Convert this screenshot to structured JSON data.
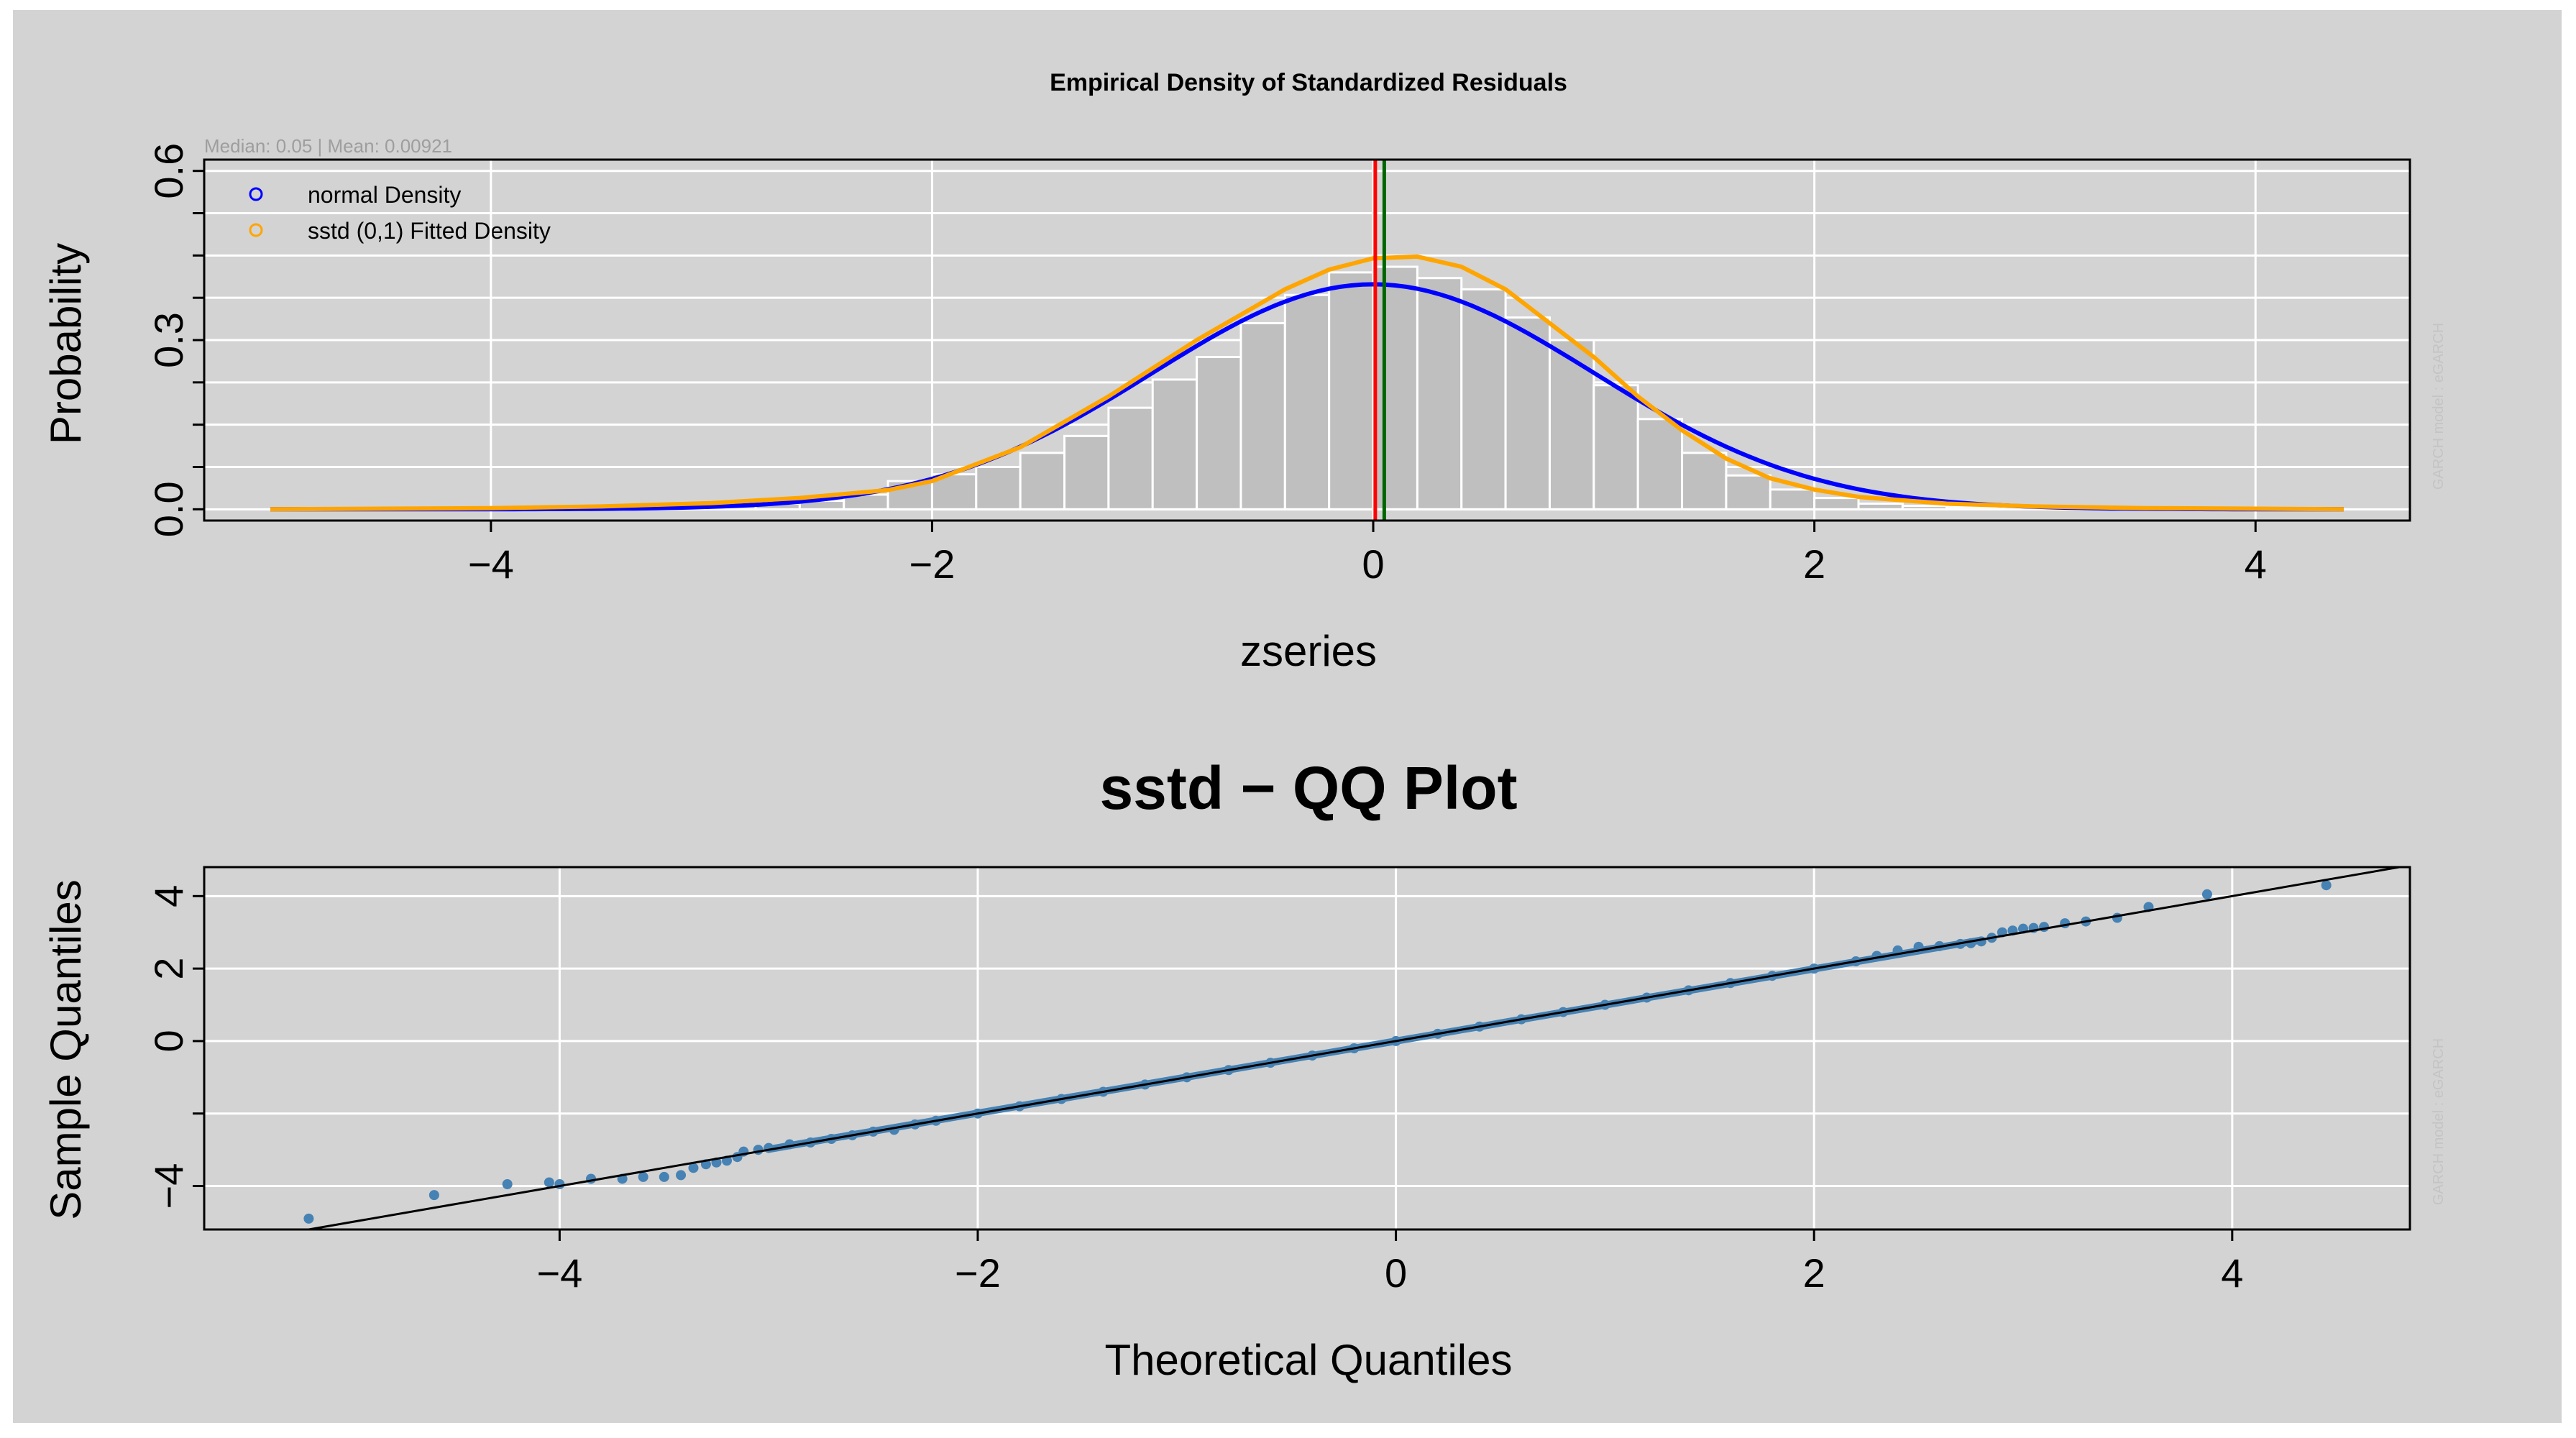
{
  "chart_data": [
    {
      "type": "histogram",
      "title": "Empirical Density of Standardized Residuals",
      "subtitle": "Median:  0.05 | Mean:  0.00921",
      "xlabel": "zseries",
      "ylabel": "Probability",
      "xlim": [
        -5.3,
        4.7
      ],
      "ylim": [
        -0.02,
        0.62
      ],
      "x_ticks": [
        -4,
        -2,
        0,
        2,
        4
      ],
      "x_tick_labels": [
        "−4",
        "−2",
        "0",
        "2",
        "4"
      ],
      "y_ticks": [
        0.0,
        0.3,
        0.6
      ],
      "y_tick_labels": [
        "0.0",
        "0.3",
        "0.6"
      ],
      "grid": true,
      "legend": {
        "position": "top-left",
        "entries": [
          {
            "label": "normal Density",
            "color": "#0000ff"
          },
          {
            "label": "sstd (0,1) Fitted Density",
            "color": "#ffa500"
          }
        ]
      },
      "bins": {
        "edges": [
          -5.0,
          -4.8,
          -4.6,
          -4.4,
          -4.2,
          -4.0,
          -3.8,
          -3.6,
          -3.4,
          -3.2,
          -3.0,
          -2.8,
          -2.6,
          -2.4,
          -2.2,
          -2.0,
          -1.8,
          -1.6,
          -1.4,
          -1.2,
          -1.0,
          -0.8,
          -0.6,
          -0.4,
          -0.2,
          0.0,
          0.2,
          0.4,
          0.6,
          0.8,
          1.0,
          1.2,
          1.4,
          1.6,
          1.8,
          2.0,
          2.2,
          2.4,
          2.6,
          2.8,
          3.0,
          3.2,
          3.4,
          3.6,
          3.8,
          4.0,
          4.2,
          4.4
        ],
        "density": [
          0.0,
          0.0,
          0.0,
          0.0,
          0.0,
          0.002,
          0.0,
          0.006,
          0.004,
          0.006,
          0.007,
          0.01,
          0.015,
          0.026,
          0.05,
          0.062,
          0.075,
          0.1,
          0.13,
          0.18,
          0.23,
          0.27,
          0.33,
          0.38,
          0.42,
          0.43,
          0.41,
          0.39,
          0.34,
          0.3,
          0.22,
          0.16,
          0.1,
          0.06,
          0.035,
          0.02,
          0.01,
          0.006,
          0.004,
          0.003,
          0.002,
          0.0,
          0.0,
          0.0,
          0.0,
          0.0,
          0.0
        ],
        "fill": "#bfbfbf",
        "stroke": "#ffffff"
      },
      "normal_density": {
        "mean": 0.0,
        "sd": 1.0,
        "color": "#0000ff"
      },
      "fitted_density": {
        "color": "#ffa500",
        "x": [
          -5.0,
          -4.0,
          -3.5,
          -3.0,
          -2.6,
          -2.2,
          -2.0,
          -1.6,
          -1.2,
          -0.8,
          -0.4,
          -0.2,
          0.0,
          0.2,
          0.4,
          0.6,
          0.8,
          1.0,
          1.2,
          1.4,
          1.6,
          1.8,
          2.0,
          2.2,
          2.6,
          3.0,
          3.5,
          4.0,
          4.4
        ],
        "y": [
          0.0,
          0.002,
          0.005,
          0.011,
          0.02,
          0.034,
          0.05,
          0.11,
          0.2,
          0.3,
          0.39,
          0.425,
          0.445,
          0.448,
          0.43,
          0.39,
          0.33,
          0.27,
          0.2,
          0.14,
          0.09,
          0.055,
          0.035,
          0.022,
          0.01,
          0.005,
          0.002,
          0.001,
          0.0
        ]
      },
      "vertical_lines": [
        {
          "x": 0.00921,
          "color": "#ff0000"
        },
        {
          "x": 0.05,
          "color": "#006400"
        }
      ],
      "watermark": "GARCH model : eGARCH"
    },
    {
      "type": "scatter",
      "title": "sstd − QQ Plot",
      "xlabel": "Theoretical Quantiles",
      "ylabel": "Sample Quantiles",
      "xlim": [
        -5.7,
        4.85
      ],
      "ylim": [
        -5.2,
        4.8
      ],
      "x_ticks": [
        -4,
        -2,
        0,
        2,
        4
      ],
      "x_tick_labels": [
        "−4",
        "−2",
        "0",
        "2",
        "4"
      ],
      "y_ticks": [
        -4,
        -2,
        0,
        2,
        4
      ],
      "y_tick_labels": [
        "−4",
        "",
        "0",
        "2",
        "4"
      ],
      "grid": true,
      "point_color": "#4682b4",
      "reference_line": {
        "intercept": 0.0,
        "slope": 1.0,
        "color": "#000000"
      },
      "points": {
        "x": [
          -5.2,
          -4.6,
          -4.25,
          -4.05,
          -4.0,
          -3.85,
          -3.7,
          -3.6,
          -3.5,
          -3.42,
          -3.36,
          -3.3,
          -3.25,
          -3.2,
          -3.15,
          -3.12,
          -3.05,
          -3.0,
          -2.9,
          -2.8,
          -2.7,
          -2.6,
          -2.5,
          -2.4,
          -2.3,
          -2.2,
          -2.0,
          -1.8,
          -1.6,
          -1.4,
          -1.2,
          -1.0,
          -0.8,
          -0.6,
          -0.4,
          -0.2,
          0.0,
          0.2,
          0.4,
          0.6,
          0.8,
          1.0,
          1.2,
          1.4,
          1.6,
          1.8,
          2.0,
          2.2,
          2.3,
          2.4,
          2.5,
          2.6,
          2.7,
          2.75,
          2.8,
          2.85,
          2.9,
          2.95,
          3.0,
          3.05,
          3.1,
          3.2,
          3.3,
          3.45,
          3.6,
          3.88,
          4.45
        ],
        "y": [
          -4.9,
          -4.25,
          -3.95,
          -3.9,
          -3.95,
          -3.8,
          -3.8,
          -3.75,
          -3.75,
          -3.7,
          -3.5,
          -3.4,
          -3.35,
          -3.3,
          -3.2,
          -3.05,
          -3.0,
          -2.95,
          -2.85,
          -2.8,
          -2.7,
          -2.6,
          -2.5,
          -2.45,
          -2.3,
          -2.2,
          -2.0,
          -1.8,
          -1.6,
          -1.4,
          -1.2,
          -1.0,
          -0.8,
          -0.6,
          -0.4,
          -0.2,
          0.0,
          0.2,
          0.4,
          0.6,
          0.8,
          1.0,
          1.2,
          1.4,
          1.6,
          1.8,
          2.0,
          2.2,
          2.35,
          2.5,
          2.6,
          2.62,
          2.68,
          2.7,
          2.75,
          2.85,
          3.0,
          3.05,
          3.1,
          3.12,
          3.15,
          3.25,
          3.3,
          3.4,
          3.7,
          4.05,
          4.3
        ]
      },
      "watermark": "GARCH model : eGARCH"
    }
  ]
}
